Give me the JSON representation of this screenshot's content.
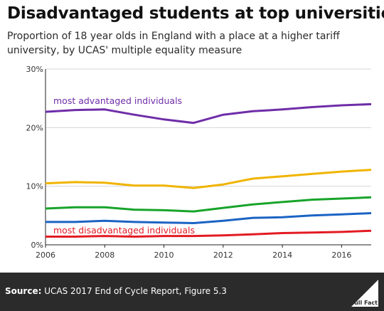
{
  "header": {
    "title": "Disadvantaged students at top universities",
    "subtitle": "Proportion of 18 year olds in England with a place at a higher tariff university, by UCAS' multiple equality measure"
  },
  "footer": {
    "source_label": "Source:",
    "source_text": "UCAS 2017 End of Cycle Report, Figure 5.3",
    "logo_text": "Full Fact",
    "background": "#2b2b2b"
  },
  "chart_data": {
    "type": "line",
    "x": [
      2006,
      2007,
      2008,
      2009,
      2010,
      2011,
      2012,
      2013,
      2014,
      2015,
      2016,
      2017
    ],
    "xticks": [
      2006,
      2008,
      2010,
      2012,
      2014,
      2016
    ],
    "xtick_labels": [
      "2006",
      "2008",
      "2010",
      "2012",
      "2014",
      "2016"
    ],
    "yticks": [
      0,
      10,
      20,
      30
    ],
    "ytick_labels": [
      "0%",
      "10%",
      "20%",
      "30%"
    ],
    "xlim": [
      2006,
      2017
    ],
    "ylim": [
      0,
      30
    ],
    "grid": true,
    "series": [
      {
        "key": "most-advantaged",
        "color": "#6f2da8",
        "values": [
          22.7,
          23.0,
          23.1,
          22.2,
          21.4,
          20.8,
          22.2,
          22.8,
          23.1,
          23.5,
          23.8,
          24.0
        ]
      },
      {
        "key": "quintile-4",
        "color": "#f0b400",
        "values": [
          10.5,
          10.7,
          10.6,
          10.1,
          10.1,
          9.7,
          10.3,
          11.3,
          11.7,
          12.1,
          12.5,
          12.8
        ]
      },
      {
        "key": "quintile-3",
        "color": "#17a42a",
        "values": [
          6.2,
          6.4,
          6.4,
          6.0,
          5.9,
          5.7,
          6.3,
          6.9,
          7.3,
          7.7,
          7.9,
          8.1
        ]
      },
      {
        "key": "quintile-2",
        "color": "#1b63c4",
        "values": [
          3.9,
          3.9,
          4.1,
          3.9,
          3.8,
          3.7,
          4.1,
          4.6,
          4.7,
          5.0,
          5.2,
          5.4
        ]
      },
      {
        "key": "most-disadvantaged",
        "color": "#e31b23",
        "values": [
          1.4,
          1.4,
          1.5,
          1.4,
          1.5,
          1.5,
          1.6,
          1.8,
          2.0,
          2.1,
          2.2,
          2.4
        ]
      }
    ],
    "annotations": [
      {
        "text": "most advantaged individuals",
        "color": "#6f2da8"
      },
      {
        "text": "most disadvantaged individuals",
        "color": "#e31b23"
      }
    ]
  }
}
